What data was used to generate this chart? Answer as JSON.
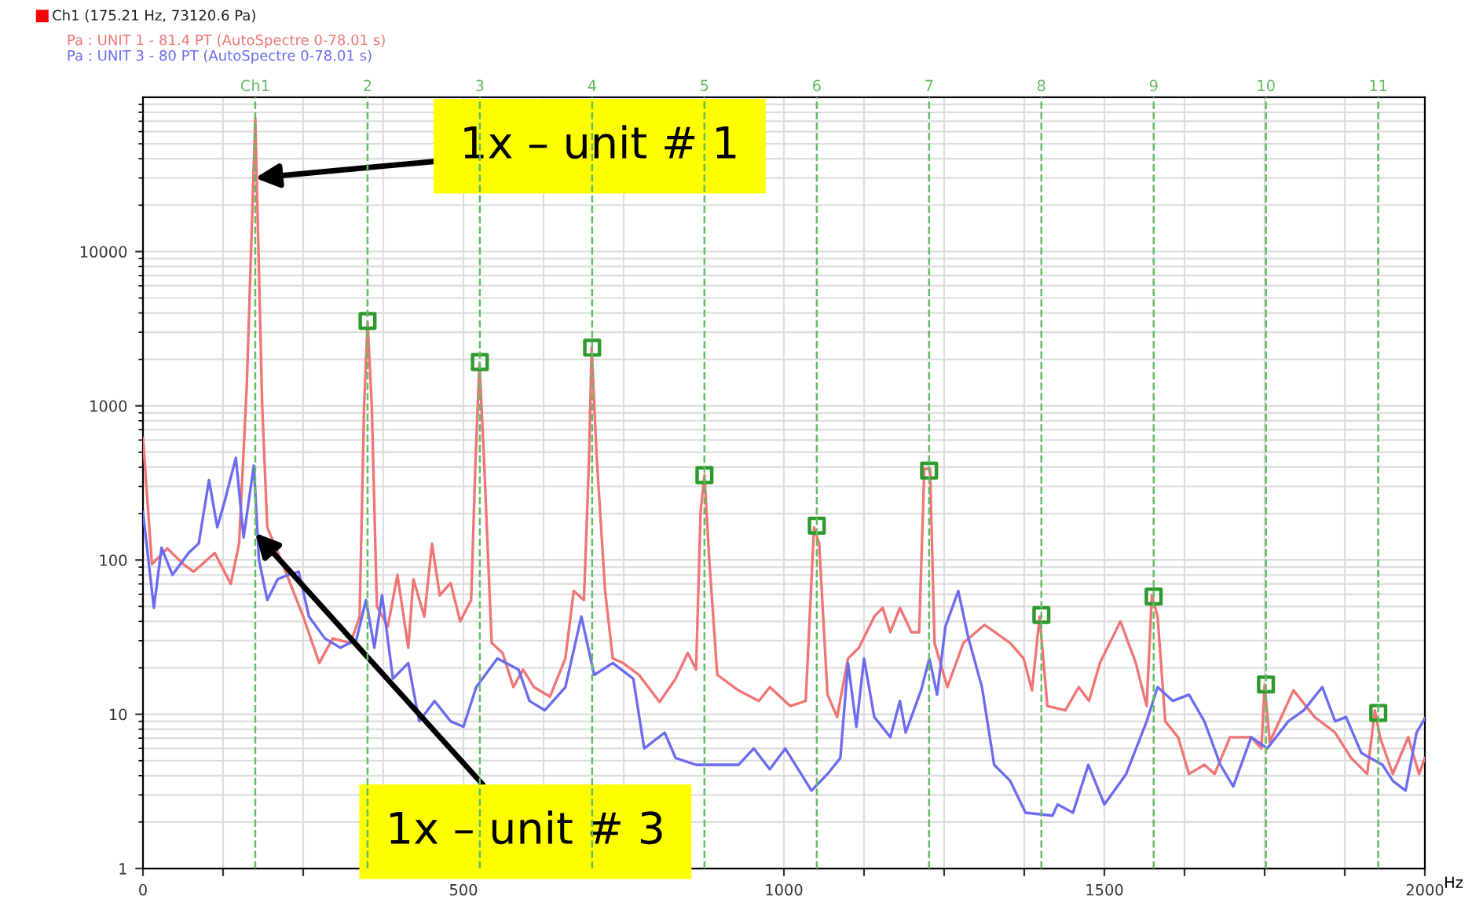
{
  "chart_data": {
    "type": "line",
    "xlabel": "Hz",
    "log": "y",
    "grid": true,
    "legend": "top left",
    "marker": "none",
    "line_style": "solid",
    "xlim": [
      0,
      2000
    ],
    "ylim": [
      1,
      100000
    ],
    "xticks": [
      0,
      {
        "value": 125,
        "label": null
      },
      {
        "value": 250,
        "label": null
      },
      {
        "value": 375,
        "label": null
      },
      500,
      {
        "value": 625,
        "label": null
      },
      {
        "value": 750,
        "label": null
      },
      1000,
      {
        "value": 1125,
        "label": null
      },
      {
        "value": 1250,
        "label": null
      },
      {
        "value": 1375,
        "label": null
      },
      1500,
      {
        "value": 1625,
        "label": null
      },
      {
        "value": 1750,
        "label": null
      },
      {
        "value": 1875,
        "label": null
      },
      2000
    ],
    "yticks": [
      1,
      10,
      100,
      1000,
      10000
    ],
    "series": [
      {
        "name": "Pa : UNIT 1 - 81.4 PT (AutoSpectre 0-78.01 s)",
        "color": "#f07575",
        "x": [
          0,
          14,
          38,
          63,
          79,
          112,
          137,
          150,
          162,
          175.21,
          186,
          194,
          218,
          250,
          275,
          296,
          324,
          338,
          345,
          350.5,
          357,
          365,
          382,
          397,
          414,
          422,
          439,
          451,
          463,
          480,
          495,
          512,
          519,
          525,
          532,
          544,
          561,
          578,
          593,
          610,
          635,
          659,
          672,
          688,
          696,
          700,
          708,
          721,
          733,
          749,
          774,
          806,
          831,
          850,
          863,
          870,
          876,
          884,
          896,
          929,
          961,
          978,
          1010,
          1034,
          1047,
          1055,
          1068,
          1083,
          1100,
          1117,
          1141,
          1154,
          1166,
          1181,
          1199,
          1211,
          1219,
          1228,
          1235,
          1255,
          1280,
          1313,
          1353,
          1374,
          1387,
          1399,
          1411,
          1439,
          1460,
          1476,
          1493,
          1525,
          1549,
          1566,
          1574,
          1583,
          1595,
          1615,
          1632,
          1656,
          1672,
          1696,
          1729,
          1745,
          1750,
          1758,
          1795,
          1828,
          1860,
          1885,
          1910,
          1922,
          1930,
          1950,
          1974,
          1991,
          2000
        ],
        "values": [
          620,
          94,
          119,
          94,
          84,
          111,
          70,
          128,
          1360,
          73120.6,
          1000,
          163,
          94,
          43,
          21.5,
          31,
          29,
          43,
          1000,
          3500,
          1000,
          50,
          37,
          80,
          27,
          75,
          43,
          128,
          59,
          71,
          40,
          55,
          460,
          1900,
          460,
          29,
          25,
          15,
          19.5,
          15,
          13,
          23,
          63,
          55,
          460,
          2380,
          460,
          63,
          23,
          21.5,
          18,
          12,
          17,
          25,
          19.5,
          205,
          355,
          94,
          18,
          14.3,
          12.2,
          15,
          11.3,
          12.2,
          163,
          128,
          13.4,
          9.6,
          23,
          27,
          43,
          49,
          34,
          49,
          34,
          34,
          390,
          390,
          29,
          15,
          29,
          38,
          29,
          23,
          14.3,
          43,
          11.3,
          10.6,
          15,
          12.2,
          21.5,
          40,
          21.5,
          11.3,
          59,
          43,
          9,
          7.1,
          4.1,
          4.7,
          4.1,
          7.1,
          7.1,
          6,
          15.5,
          6.6,
          14.3,
          9.6,
          7.6,
          5.2,
          4.1,
          10.6,
          7.1,
          4.1,
          7.1,
          4.1,
          5.2
        ]
      },
      {
        "name": "Pa : UNIT 3 - 80 PT (AutoSpectre 0-78.01 s)",
        "color": "#6b6bf0",
        "x": [
          0,
          17,
          29,
          46,
          71,
          87,
          103,
          116,
          128,
          145,
          157,
          173,
          181,
          194,
          210,
          226,
          243,
          259,
          284,
          308,
          333,
          348,
          361,
          373,
          390,
          414,
          431,
          455,
          480,
          500,
          520,
          553,
          586,
          603,
          627,
          659,
          684,
          704,
          733,
          765,
          782,
          814,
          831,
          863,
          904,
          929,
          953,
          978,
          1002,
          1043,
          1068,
          1088,
          1100,
          1113,
          1125,
          1141,
          1166,
          1181,
          1190,
          1214,
          1227,
          1239,
          1252,
          1272,
          1288,
          1309,
          1328,
          1353,
          1377,
          1419,
          1427,
          1451,
          1475,
          1500,
          1534,
          1566,
          1583,
          1607,
          1632,
          1656,
          1681,
          1701,
          1729,
          1754,
          1787,
          1811,
          1840,
          1860,
          1877,
          1901,
          1934,
          1950,
          1970,
          1987,
          2000
        ],
        "values": [
          205,
          49,
          120,
          80,
          111,
          128,
          330,
          163,
          245,
          460,
          140,
          410,
          100,
          55,
          75,
          80,
          84,
          43,
          31,
          27,
          30.5,
          55,
          27,
          59,
          17,
          21.5,
          9,
          12.2,
          9,
          8.3,
          15,
          23,
          19.5,
          12.2,
          10.6,
          15,
          43,
          18,
          21.5,
          17,
          6,
          7.6,
          5.2,
          4.7,
          4.7,
          4.7,
          6,
          4.4,
          6,
          3.2,
          4.1,
          5.2,
          21.5,
          8.3,
          23,
          9.6,
          7.1,
          12.2,
          7.6,
          14.3,
          23,
          13.4,
          37,
          63,
          31,
          15,
          4.7,
          3.7,
          2.3,
          2.2,
          2.6,
          2.3,
          4.7,
          2.6,
          4.1,
          9,
          15,
          12.2,
          13.4,
          9,
          4.7,
          3.4,
          7.1,
          6,
          9,
          10.6,
          15,
          9,
          9.6,
          5.6,
          4.7,
          3.7,
          3.2,
          7.6,
          9.4
        ]
      },
      {
        "type": "scatter",
        "color": "#2e9a2e",
        "marker": "square",
        "x": [
          350.4,
          525.6,
          700.8,
          876,
          1051.3,
          1226.5,
          1401.7,
          1576.9,
          1752.1,
          1927.3
        ],
        "values": [
          3550,
          1920,
          2380,
          355,
          167,
          380,
          44,
          58,
          15.6,
          10.2
        ]
      }
    ],
    "ref_lines": [
      {
        "axis": "x",
        "value": 175.21,
        "color": "#66bb66",
        "line_style": "dashed"
      },
      {
        "axis": "x",
        "value": 350.4,
        "color": "#66bb66",
        "line_style": "dashed"
      },
      {
        "axis": "x",
        "value": 525.6,
        "color": "#66bb66",
        "line_style": "dashed"
      },
      {
        "axis": "x",
        "value": 700.8,
        "color": "#66bb66",
        "line_style": "dashed"
      },
      {
        "axis": "x",
        "value": 876,
        "color": "#66bb66",
        "line_style": "dashed"
      },
      {
        "axis": "x",
        "value": 1051.3,
        "color": "#66bb66",
        "line_style": "dashed"
      },
      {
        "axis": "x",
        "value": 1226.5,
        "color": "#66bb66",
        "line_style": "dashed"
      },
      {
        "axis": "x",
        "value": 1401.7,
        "color": "#66bb66",
        "line_style": "dashed"
      },
      {
        "axis": "x",
        "value": 1576.9,
        "color": "#66bb66",
        "line_style": "dashed"
      },
      {
        "axis": "x",
        "value": 1752.1,
        "color": "#66bb66",
        "line_style": "dashed"
      },
      {
        "axis": "x",
        "value": 1927.3,
        "color": "#66bb66",
        "line_style": "dashed"
      }
    ],
    "annotations": [
      "Ch1 (175.21 Hz, 73120.6 Pa)",
      "Ch1",
      "2",
      "3",
      "4",
      "5",
      "6",
      "7",
      "8",
      "9",
      "10",
      "11",
      {
        "text": "1x – unit # 1",
        "x": 175.21,
        "y": 30000
      },
      {
        "text": "1x – unit # 3",
        "x": 175.21,
        "y": 150
      }
    ]
  }
}
